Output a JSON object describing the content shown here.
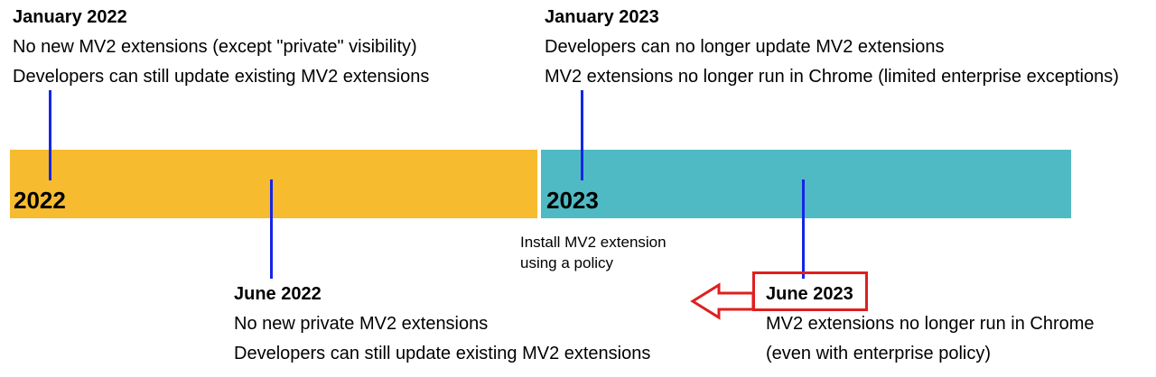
{
  "colors": {
    "bar_2022": "#f6bb2e",
    "bar_2023": "#4fbac4",
    "tick": "#1526e6",
    "highlight": "#e01f1f"
  },
  "bars": {
    "y2022_label": "2022",
    "y2023_label": "2023"
  },
  "events": {
    "jan2022": {
      "title": "January 2022",
      "lines": [
        "No new MV2 extensions (except \"private\" visibility)",
        "Developers can still update existing MV2 extensions"
      ]
    },
    "jun2022": {
      "title": "June 2022",
      "lines": [
        "No new private MV2 extensions",
        "Developers can still update existing MV2 extensions"
      ]
    },
    "jan2023": {
      "title": "January 2023",
      "lines": [
        "Developers can no longer update MV2 extensions",
        "MV2 extensions no longer run in Chrome (limited enterprise exceptions)"
      ]
    },
    "jun2023": {
      "title": "June 2023",
      "lines": [
        "MV2 extensions no longer run in Chrome",
        "(even with enterprise policy)"
      ]
    }
  },
  "annotation": {
    "text": "Install MV2 extension using a policy",
    "arrow_icon": "left-arrow-icon"
  }
}
